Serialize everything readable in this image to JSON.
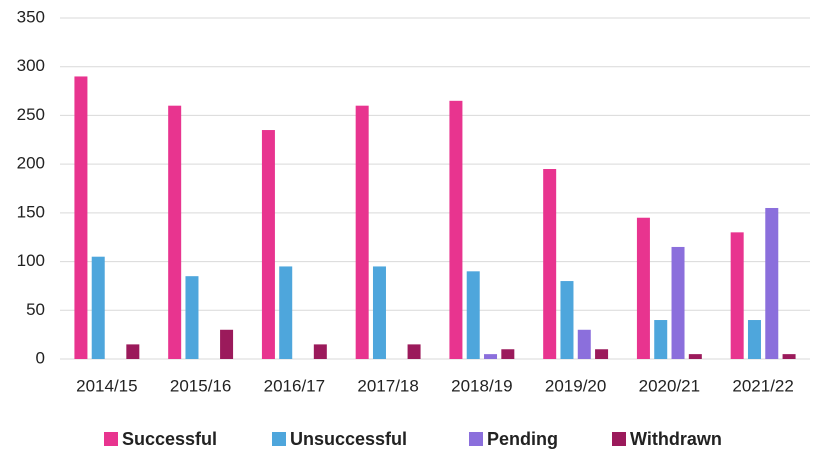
{
  "chart_data": {
    "type": "bar",
    "categories": [
      "2014/15",
      "2015/16",
      "2016/17",
      "2017/18",
      "2018/19",
      "2019/20",
      "2020/21",
      "2021/22"
    ],
    "series": [
      {
        "name": "Successful",
        "color": "#e8348f",
        "values": [
          290,
          260,
          235,
          260,
          265,
          195,
          145,
          130
        ]
      },
      {
        "name": "Unsuccessful",
        "color": "#4ea6dc",
        "values": [
          105,
          85,
          95,
          95,
          90,
          80,
          40,
          40
        ]
      },
      {
        "name": "Pending",
        "color": "#8b6fdc",
        "values": [
          0,
          0,
          0,
          0,
          5,
          30,
          115,
          155
        ]
      },
      {
        "name": "Withdrawn",
        "color": "#9b1a5b",
        "values": [
          15,
          30,
          15,
          15,
          10,
          10,
          5,
          5
        ]
      }
    ],
    "ylim": [
      0,
      350
    ],
    "yticks": [
      0,
      50,
      100,
      150,
      200,
      250,
      300,
      350
    ],
    "grid": true,
    "legend": "bottom"
  }
}
